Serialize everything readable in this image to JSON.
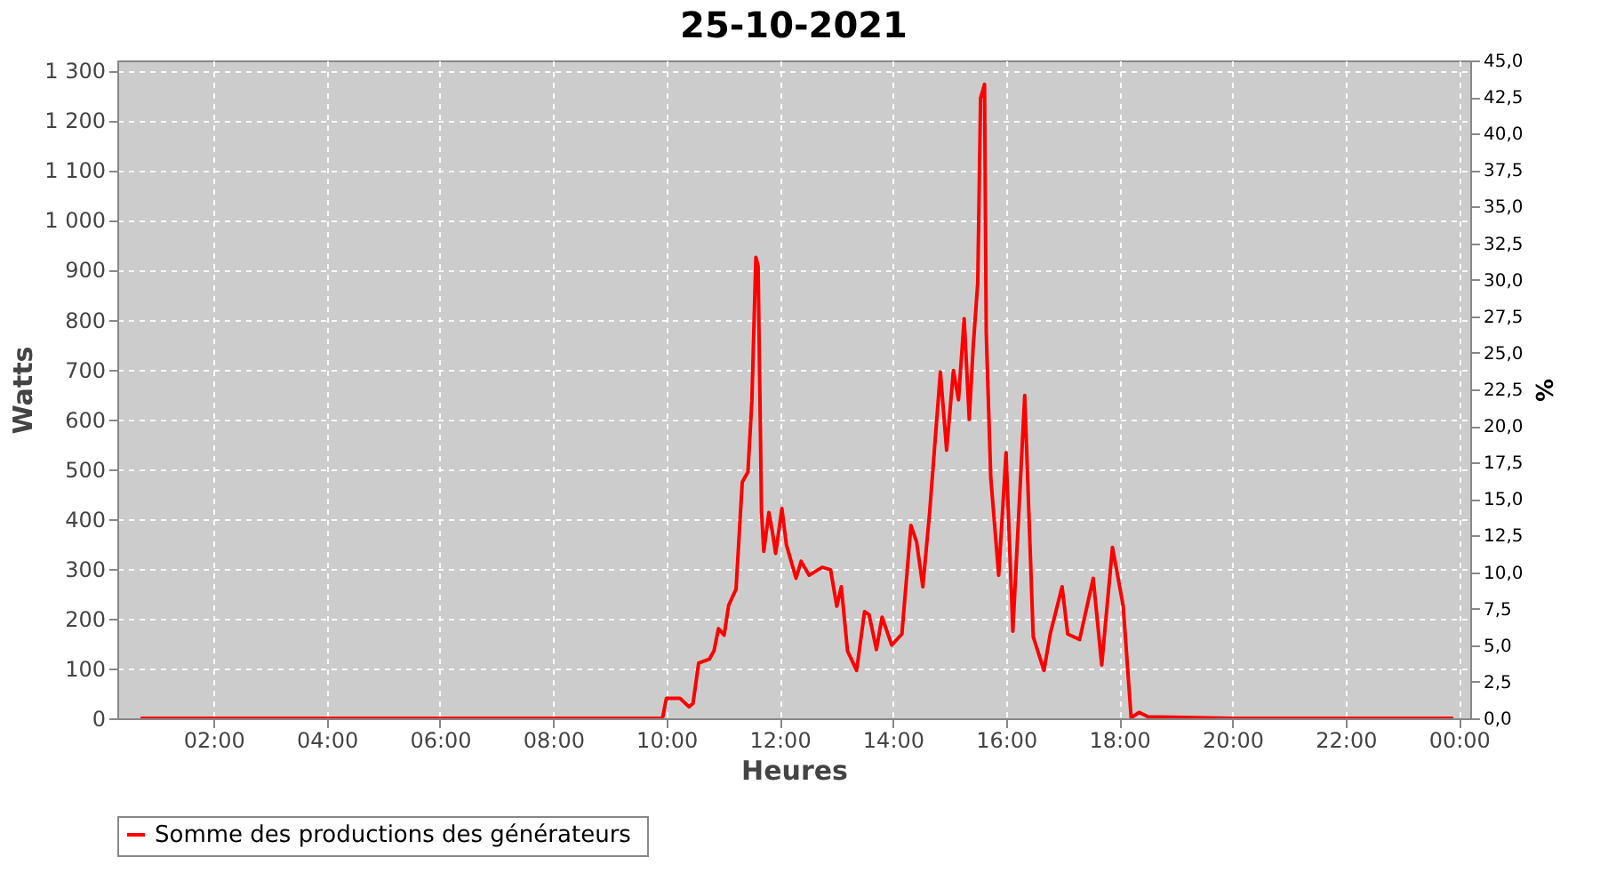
{
  "chart_data": {
    "type": "line",
    "title": "25-10-2021",
    "xlabel": "Heures",
    "ylabel": "Watts",
    "y2label": "%",
    "xlim": [
      0.3,
      24.2
    ],
    "xticks": [
      {
        "value": 2,
        "label": "02:00"
      },
      {
        "value": 4,
        "label": "04:00"
      },
      {
        "value": 6,
        "label": "06:00"
      },
      {
        "value": 8,
        "label": "08:00"
      },
      {
        "value": 10,
        "label": "10:00"
      },
      {
        "value": 12,
        "label": "12:00"
      },
      {
        "value": 14,
        "label": "14:00"
      },
      {
        "value": 16,
        "label": "16:00"
      },
      {
        "value": 18,
        "label": "18:00"
      },
      {
        "value": 20,
        "label": "20:00"
      },
      {
        "value": 22,
        "label": "22:00"
      },
      {
        "value": 24,
        "label": "00:00"
      }
    ],
    "ylim": [
      0,
      1320
    ],
    "yticks": [
      0,
      100,
      200,
      300,
      400,
      500,
      600,
      700,
      800,
      900,
      {
        "value": 1000,
        "label": "1 000"
      },
      {
        "value": 1100,
        "label": "1 100"
      },
      {
        "value": 1200,
        "label": "1 200"
      },
      {
        "value": 1300,
        "label": "1 300"
      }
    ],
    "y2lim": [
      0,
      45
    ],
    "y2ticks": [
      {
        "value": 0,
        "label": "0,0"
      },
      {
        "value": 2.5,
        "label": "2,5"
      },
      {
        "value": 5,
        "label": "5,0"
      },
      {
        "value": 7.5,
        "label": "7,5"
      },
      {
        "value": 10,
        "label": "10,0"
      },
      {
        "value": 12.5,
        "label": "12,5"
      },
      {
        "value": 15,
        "label": "15,0"
      },
      {
        "value": 17.5,
        "label": "17,5"
      },
      {
        "value": 20,
        "label": "20,0"
      },
      {
        "value": 22.5,
        "label": "22,5"
      },
      {
        "value": 25,
        "label": "25,0"
      },
      {
        "value": 27.5,
        "label": "27,5"
      },
      {
        "value": 30,
        "label": "30,0"
      },
      {
        "value": 32.5,
        "label": "32,5"
      },
      {
        "value": 35,
        "label": "35,0"
      },
      {
        "value": 37.5,
        "label": "37,5"
      },
      {
        "value": 40,
        "label": "40,0"
      },
      {
        "value": 42.5,
        "label": "42,5"
      },
      {
        "value": 45,
        "label": "45,0"
      }
    ],
    "grid": true,
    "legend": "bottom",
    "marker": "none",
    "line_style": "solid",
    "series": [
      {
        "name": "Somme des productions des  générateurs",
        "color": "#ff0000",
        "x": [
          0.71,
          3,
          6,
          9,
          9.93,
          10.0,
          10.24,
          10.4,
          10.47,
          10.57,
          10.76,
          10.84,
          10.92,
          11.02,
          11.1,
          11.23,
          11.34,
          11.44,
          11.51,
          11.58,
          11.62,
          11.68,
          11.72,
          11.81,
          11.87,
          11.93,
          12.04,
          12.12,
          12.29,
          12.38,
          12.52,
          12.75,
          12.9,
          13.01,
          13.09,
          13.2,
          13.36,
          13.5,
          13.58,
          13.71,
          13.81,
          13.98,
          14.16,
          14.32,
          14.42,
          14.53,
          14.65,
          14.84,
          14.95,
          15.07,
          15.16,
          15.26,
          15.35,
          15.42,
          15.5,
          15.55,
          15.62,
          15.65,
          15.73,
          15.87,
          16.0,
          16.12,
          16.33,
          16.48,
          16.67,
          16.78,
          16.99,
          17.09,
          17.3,
          17.54,
          17.69,
          17.88,
          18.07,
          18.21,
          18.35,
          18.51,
          20,
          22,
          23.9
        ],
        "values": [
          0,
          0,
          0,
          0,
          0,
          40,
          40,
          23,
          30,
          111,
          119,
          135,
          180,
          167,
          227,
          259,
          474,
          494,
          637,
          925,
          908,
          415,
          335,
          413,
          376,
          331,
          421,
          348,
          281,
          315,
          287,
          303,
          298,
          225,
          264,
          135,
          96,
          214,
          208,
          138,
          203,
          147,
          169,
          387,
          354,
          264,
          413,
          695,
          538,
          698,
          639,
          802,
          600,
          746,
          874,
          1244,
          1272,
          774,
          483,
          287,
          533,
          175,
          648,
          164,
          96,
          169,
          264,
          169,
          158,
          281,
          107,
          343,
          225,
          1,
          12,
          3,
          0,
          0,
          0
        ]
      }
    ]
  }
}
